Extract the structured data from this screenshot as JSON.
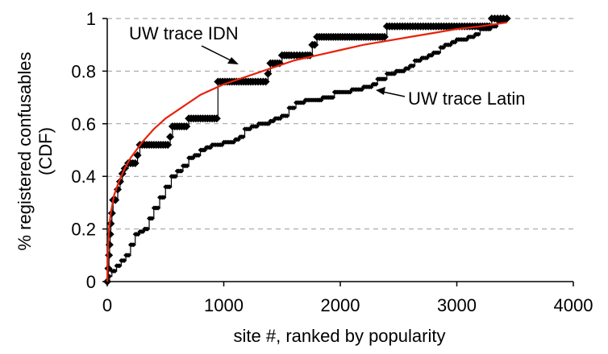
{
  "chart_data": {
    "type": "line",
    "xlabel": "site #, ranked by popularity",
    "ylabel_line1": "% registered confusables",
    "ylabel_line2": "(CDF)",
    "xlim": [
      0,
      4000
    ],
    "ylim": [
      0,
      1
    ],
    "x_ticks": [
      "0",
      "1000",
      "2000",
      "3000",
      "4000"
    ],
    "y_ticks": [
      "0",
      "0.2",
      "0.4",
      "0.6",
      "0.8",
      "1"
    ],
    "x_tick_values": [
      0,
      1000,
      2000,
      3000,
      4000
    ],
    "y_tick_values": [
      0,
      0.2,
      0.4,
      0.6,
      0.8,
      1
    ],
    "grid": "horizontal dashed",
    "colors": {
      "marker": "#000000",
      "fit": "#e8220c",
      "grid": "#999999"
    },
    "annotations": [
      {
        "text": "UW trace IDN",
        "series": "idn"
      },
      {
        "text": "UW trace Latin",
        "series": "latin"
      }
    ],
    "series": [
      {
        "id": "idn",
        "style": "diamond-markers",
        "points": [
          [
            0,
            0
          ],
          [
            10,
            0.05
          ],
          [
            15,
            0.1
          ],
          [
            20,
            0.14
          ],
          [
            25,
            0.18
          ],
          [
            30,
            0.22
          ],
          [
            40,
            0.26
          ],
          [
            50,
            0.31
          ],
          [
            70,
            0.31
          ],
          [
            90,
            0.35
          ],
          [
            110,
            0.38
          ],
          [
            130,
            0.41
          ],
          [
            150,
            0.43
          ],
          [
            180,
            0.45
          ],
          [
            200,
            0.45
          ],
          [
            240,
            0.45
          ],
          [
            260,
            0.48
          ],
          [
            280,
            0.52
          ],
          [
            320,
            0.52
          ],
          [
            400,
            0.52
          ],
          [
            500,
            0.52
          ],
          [
            540,
            0.55
          ],
          [
            560,
            0.59
          ],
          [
            600,
            0.59
          ],
          [
            680,
            0.59
          ],
          [
            700,
            0.62
          ],
          [
            760,
            0.62
          ],
          [
            840,
            0.62
          ],
          [
            940,
            0.62
          ],
          [
            950,
            0.76
          ],
          [
            1050,
            0.76
          ],
          [
            1150,
            0.76
          ],
          [
            1250,
            0.76
          ],
          [
            1360,
            0.76
          ],
          [
            1380,
            0.79
          ],
          [
            1400,
            0.83
          ],
          [
            1480,
            0.83
          ],
          [
            1500,
            0.86
          ],
          [
            1580,
            0.86
          ],
          [
            1700,
            0.86
          ],
          [
            1760,
            0.9
          ],
          [
            1800,
            0.93
          ],
          [
            1900,
            0.93
          ],
          [
            2000,
            0.93
          ],
          [
            2100,
            0.93
          ],
          [
            2200,
            0.93
          ],
          [
            2300,
            0.93
          ],
          [
            2380,
            0.93
          ],
          [
            2400,
            0.97
          ],
          [
            2600,
            0.97
          ],
          [
            2800,
            0.97
          ],
          [
            3000,
            0.97
          ],
          [
            3200,
            0.97
          ],
          [
            3280,
            0.97
          ],
          [
            3300,
            1.0
          ],
          [
            3350,
            1.0
          ],
          [
            3400,
            1.0
          ],
          [
            3430,
            1.0
          ]
        ]
      },
      {
        "id": "latin",
        "style": "small-markers",
        "points": [
          [
            0,
            0
          ],
          [
            20,
            0.02
          ],
          [
            40,
            0.04
          ],
          [
            80,
            0.06
          ],
          [
            120,
            0.08
          ],
          [
            160,
            0.1
          ],
          [
            200,
            0.14
          ],
          [
            240,
            0.18
          ],
          [
            280,
            0.19
          ],
          [
            320,
            0.2
          ],
          [
            360,
            0.24
          ],
          [
            400,
            0.28
          ],
          [
            450,
            0.32
          ],
          [
            500,
            0.36
          ],
          [
            550,
            0.4
          ],
          [
            600,
            0.42
          ],
          [
            650,
            0.44
          ],
          [
            700,
            0.47
          ],
          [
            750,
            0.48
          ],
          [
            800,
            0.5
          ],
          [
            850,
            0.51
          ],
          [
            900,
            0.52
          ],
          [
            960,
            0.52
          ],
          [
            1000,
            0.53
          ],
          [
            1100,
            0.54
          ],
          [
            1140,
            0.55
          ],
          [
            1180,
            0.58
          ],
          [
            1240,
            0.59
          ],
          [
            1300,
            0.6
          ],
          [
            1360,
            0.6
          ],
          [
            1400,
            0.61
          ],
          [
            1440,
            0.62
          ],
          [
            1500,
            0.63
          ],
          [
            1560,
            0.66
          ],
          [
            1620,
            0.68
          ],
          [
            1700,
            0.69
          ],
          [
            1800,
            0.69
          ],
          [
            1850,
            0.7
          ],
          [
            1900,
            0.7
          ],
          [
            1950,
            0.72
          ],
          [
            2000,
            0.72
          ],
          [
            2100,
            0.73
          ],
          [
            2200,
            0.74
          ],
          [
            2280,
            0.75
          ],
          [
            2320,
            0.77
          ],
          [
            2400,
            0.79
          ],
          [
            2480,
            0.8
          ],
          [
            2560,
            0.81
          ],
          [
            2600,
            0.82
          ],
          [
            2640,
            0.84
          ],
          [
            2700,
            0.85
          ],
          [
            2760,
            0.86
          ],
          [
            2800,
            0.87
          ],
          [
            2860,
            0.89
          ],
          [
            2900,
            0.9
          ],
          [
            2960,
            0.91
          ],
          [
            3000,
            0.92
          ],
          [
            3100,
            0.93
          ],
          [
            3160,
            0.94
          ],
          [
            3200,
            0.96
          ],
          [
            3300,
            0.97
          ],
          [
            3350,
            0.99
          ],
          [
            3420,
            1.0
          ]
        ]
      },
      {
        "id": "fit",
        "style": "red-line",
        "points": [
          [
            1,
            0.0
          ],
          [
            5,
            0.12
          ],
          [
            15,
            0.2
          ],
          [
            30,
            0.26
          ],
          [
            60,
            0.33
          ],
          [
            100,
            0.38
          ],
          [
            150,
            0.43
          ],
          [
            200,
            0.47
          ],
          [
            300,
            0.53
          ],
          [
            400,
            0.58
          ],
          [
            500,
            0.62
          ],
          [
            600,
            0.65
          ],
          [
            700,
            0.68
          ],
          [
            800,
            0.71
          ],
          [
            900,
            0.73
          ],
          [
            1000,
            0.75
          ],
          [
            1200,
            0.78
          ],
          [
            1400,
            0.81
          ],
          [
            1600,
            0.84
          ],
          [
            1800,
            0.86
          ],
          [
            2000,
            0.88
          ],
          [
            2200,
            0.9
          ],
          [
            2400,
            0.915
          ],
          [
            2600,
            0.93
          ],
          [
            2800,
            0.945
          ],
          [
            3000,
            0.96
          ],
          [
            3200,
            0.97
          ],
          [
            3430,
            0.985
          ]
        ]
      }
    ]
  }
}
